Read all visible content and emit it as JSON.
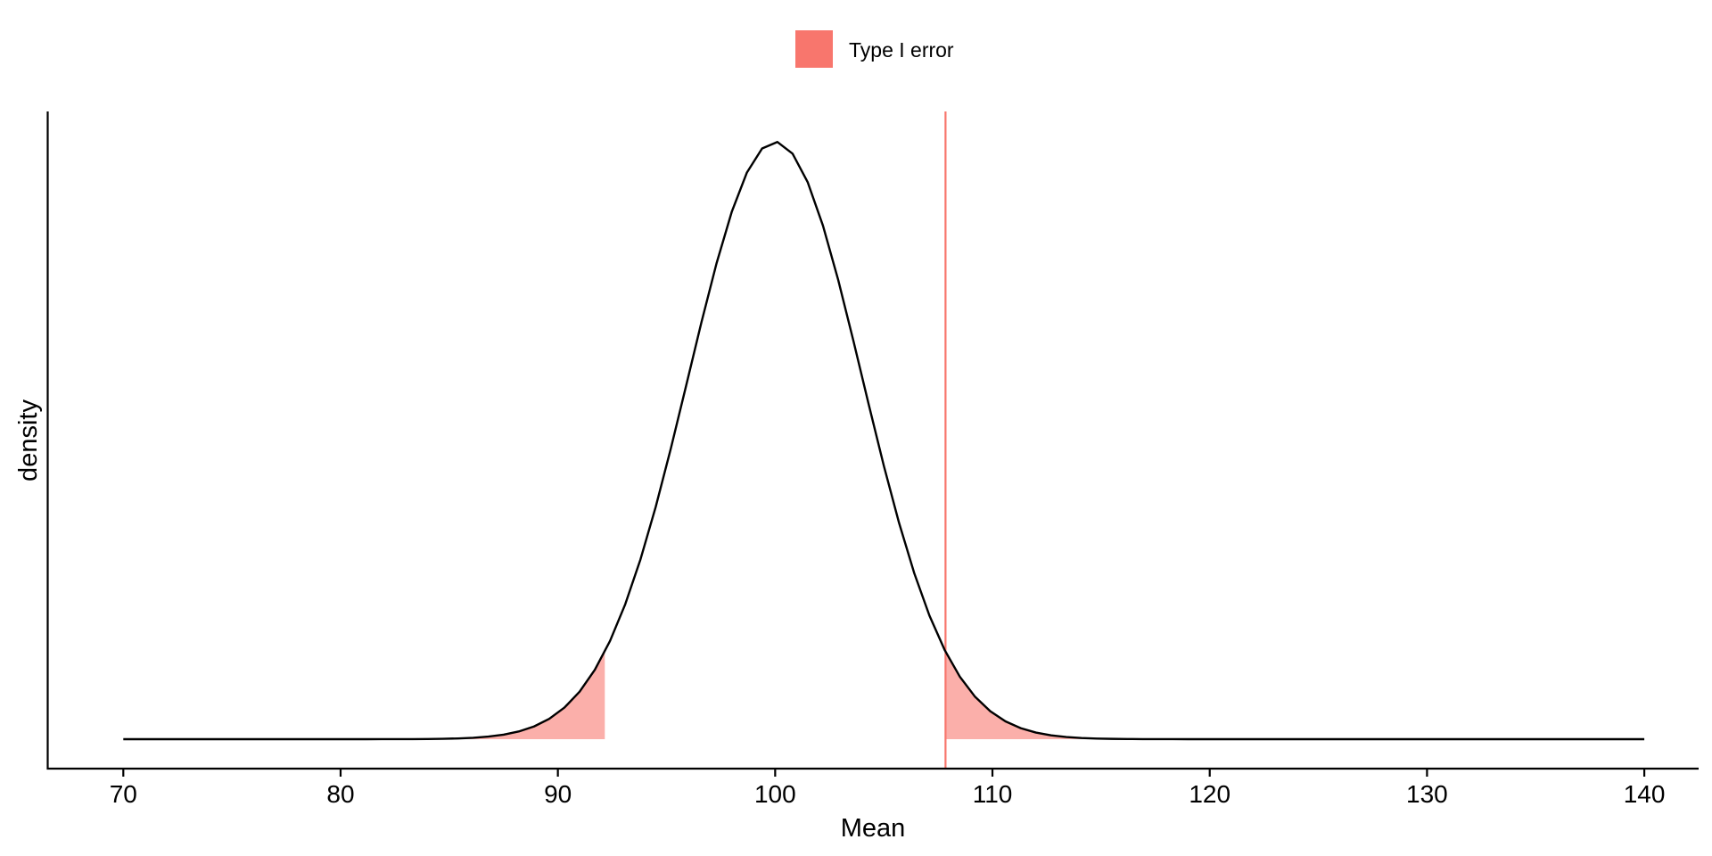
{
  "chart_data": {
    "type": "area",
    "title": "",
    "xlabel": "Mean",
    "ylabel": "density",
    "xlim": [
      66.5,
      142.5
    ],
    "x_ticks": [
      70,
      80,
      90,
      100,
      110,
      120,
      130,
      140
    ],
    "x_tick_labels": [
      "70",
      "80",
      "90",
      "100",
      "110",
      "120",
      "130",
      "140"
    ],
    "y_tick_labels": [],
    "grid": false,
    "legend": {
      "position": "top",
      "entries": [
        {
          "label": "Type I error",
          "color": "#F8766D"
        }
      ]
    },
    "curve": {
      "distribution": "normal",
      "mean": 100,
      "sd": 4,
      "x_range": [
        70,
        140
      ],
      "points": 101,
      "color": "#000000"
    },
    "shaded_regions": [
      {
        "name": "Type I error",
        "from": 70,
        "to": 92.16,
        "color": "#F8766D"
      },
      {
        "name": "Type I error",
        "from": 107.84,
        "to": 140,
        "color": "#F8766D"
      }
    ],
    "vline": {
      "x": 107.84,
      "color": "#F8766D"
    }
  }
}
